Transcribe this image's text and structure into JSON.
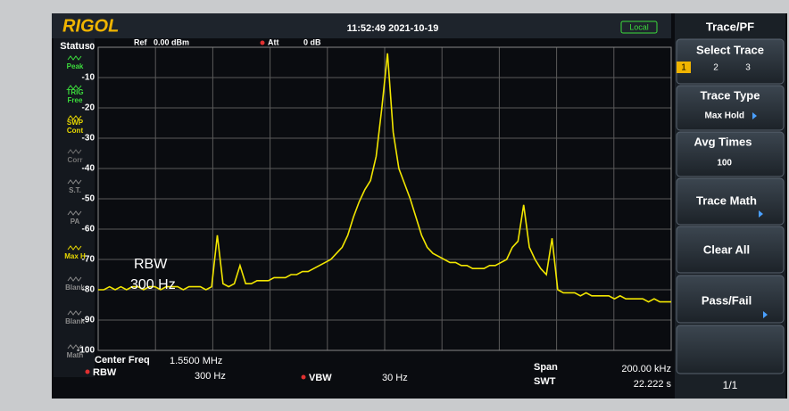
{
  "header": {
    "brand": "RIGOL",
    "datetime": "11:52:49 2021-10-19",
    "mode": "Local"
  },
  "status": {
    "title": "Status",
    "items": [
      [
        "Peak"
      ],
      [
        "TRIG",
        "Free"
      ],
      [
        "SWP",
        "Cont"
      ],
      [
        "Corr"
      ],
      [
        "S.T."
      ],
      [
        "PA"
      ],
      [
        "Max H"
      ],
      [
        "Blank"
      ],
      [
        "Blank"
      ],
      [
        "Math"
      ]
    ]
  },
  "plot": {
    "ref_label": "Ref",
    "ref_value": "0.00 dBm",
    "att_label": "Att",
    "att_value": "0 dB",
    "ylim": [
      -100,
      0
    ],
    "yticks": [
      0,
      -10,
      -20,
      -30,
      -40,
      -50,
      -60,
      -70,
      -80,
      -90,
      -100
    ],
    "overlay": [
      "RBW",
      "300 Hz"
    ],
    "trace": {
      "color": "#f2e600",
      "values": [
        -80,
        -80,
        -79,
        -80,
        -79,
        -80,
        -79,
        -79,
        -80,
        -79,
        -79,
        -80,
        -79,
        -79,
        -79,
        -80,
        -79,
        -79,
        -79,
        -80,
        -79,
        -62,
        -78,
        -79,
        -78,
        -72,
        -78,
        -78,
        -77,
        -77,
        -77,
        -76,
        -76,
        -76,
        -75,
        -75,
        -74,
        -74,
        -73,
        -72,
        -71,
        -70,
        -68,
        -66,
        -62,
        -56,
        -51,
        -47,
        -44,
        -36,
        -20,
        -2,
        -28,
        -40,
        -45,
        -50,
        -56,
        -62,
        -66,
        -68,
        -69,
        -70,
        -71,
        -71,
        -72,
        -72,
        -73,
        -73,
        -73,
        -72,
        -72,
        -71,
        -70,
        -66,
        -64,
        -52,
        -66,
        -70,
        -73,
        -75,
        -63,
        -80,
        -81,
        -81,
        -81,
        -82,
        -81,
        -82,
        -82,
        -82,
        -82,
        -83,
        -82,
        -83,
        -83,
        -83,
        -83,
        -84,
        -83,
        -84,
        -84,
        -84
      ]
    }
  },
  "footer": {
    "center_freq_label": "Center Freq",
    "center_freq": "1.5500 MHz",
    "rbw_label": "RBW",
    "rbw": "300 Hz",
    "vbw_label": "VBW",
    "vbw": "30 Hz",
    "span_label": "Span",
    "span": "200.00 kHz",
    "swt_label": "SWT",
    "swt": "22.222 s"
  },
  "menu": {
    "title": "Trace/PF",
    "select_trace": {
      "label": "Select Trace",
      "options": [
        "1",
        "2",
        "3"
      ]
    },
    "trace_type": {
      "label": "Trace Type",
      "value": "Max Hold"
    },
    "avg_times": {
      "label": "Avg Times",
      "value": "100"
    },
    "trace_math": "Trace Math",
    "clear_all": "Clear All",
    "pass_fail": "Pass/Fail",
    "page": "1/1"
  }
}
